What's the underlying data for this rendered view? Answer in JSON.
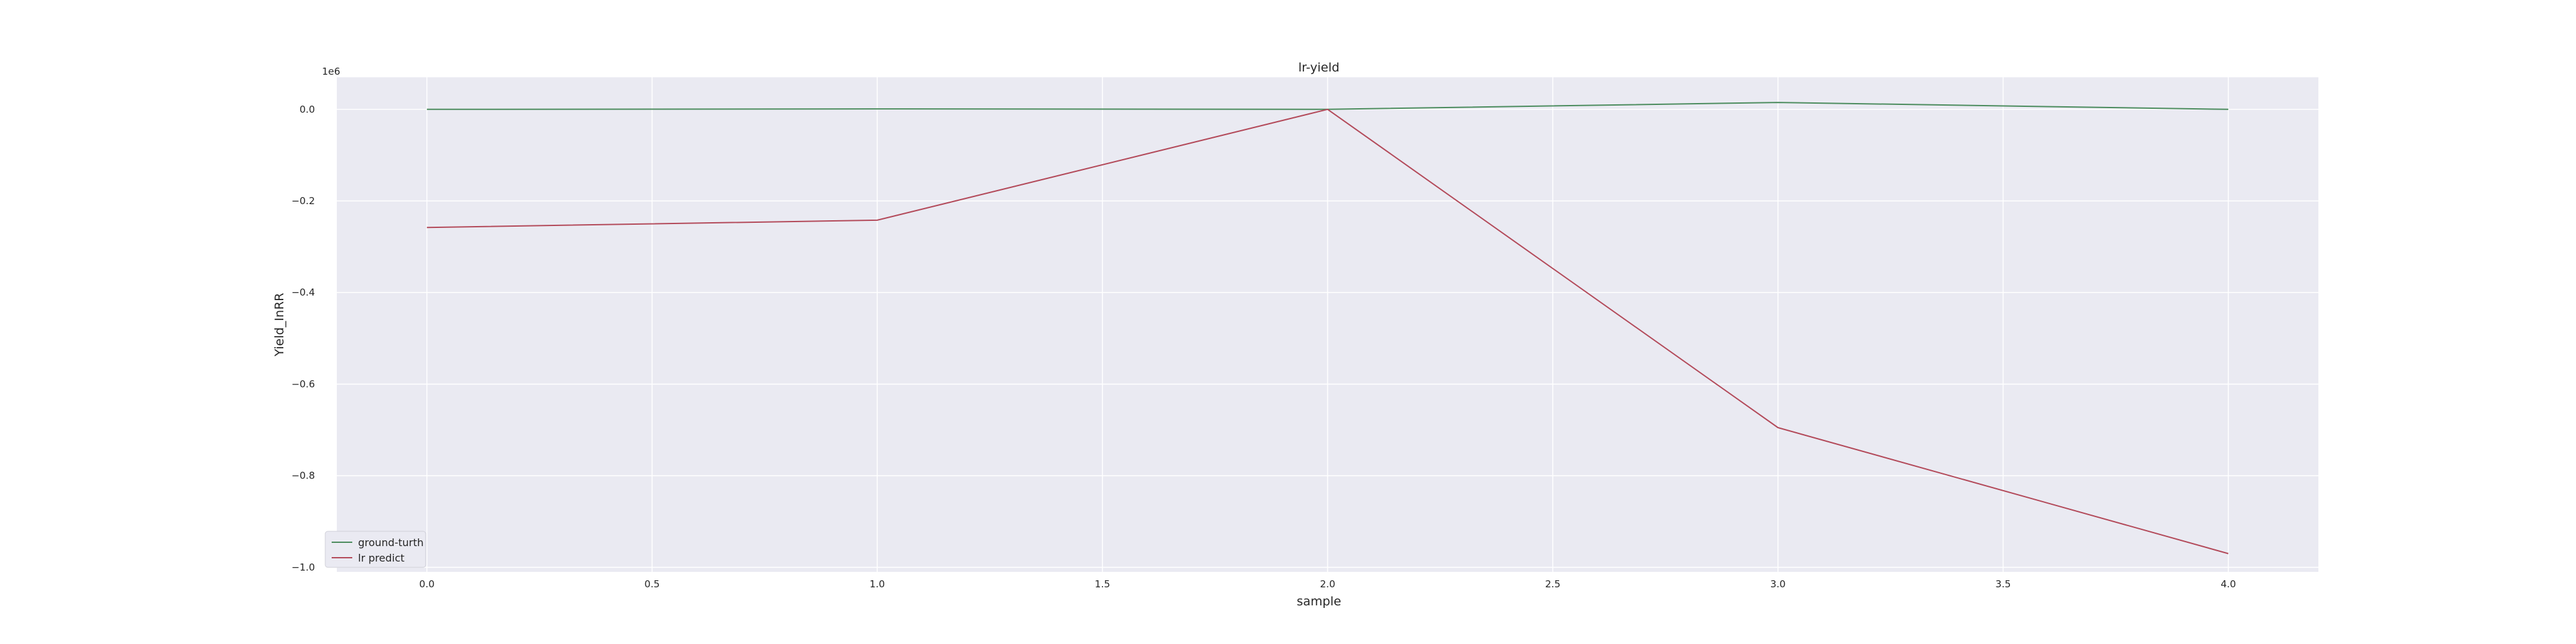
{
  "chart_data": {
    "type": "line",
    "title": "lr-yield",
    "xlabel": "sample",
    "ylabel": "Yield_InRR",
    "y_scale_label": "1e6",
    "x": [
      0,
      1,
      2,
      3,
      4
    ],
    "xlim": [
      -0.2,
      4.2
    ],
    "ylim": [
      -1.01,
      0.07
    ],
    "xticks": [
      0.0,
      0.5,
      1.0,
      1.5,
      2.0,
      2.5,
      3.0,
      3.5,
      4.0
    ],
    "xtick_labels": [
      "0.0",
      "0.5",
      "1.0",
      "1.5",
      "2.0",
      "2.5",
      "3.0",
      "3.5",
      "4.0"
    ],
    "yticks": [
      0.0,
      -0.2,
      -0.4,
      -0.6,
      -0.8,
      -1.0
    ],
    "ytick_labels": [
      "0.0",
      "−0.2",
      "−0.4",
      "−0.6",
      "−0.8",
      "−1.0"
    ],
    "grid": true,
    "legend_position": "lower-left",
    "series": [
      {
        "name": "ground-turth",
        "color": "#4c8c5e",
        "values": [
          0.0,
          0.001,
          0.0,
          0.015,
          0.0
        ]
      },
      {
        "name": "lr predict",
        "color": "#b34a5a",
        "values": [
          -0.258,
          -0.242,
          0.0,
          -0.695,
          -0.97
        ]
      }
    ]
  }
}
